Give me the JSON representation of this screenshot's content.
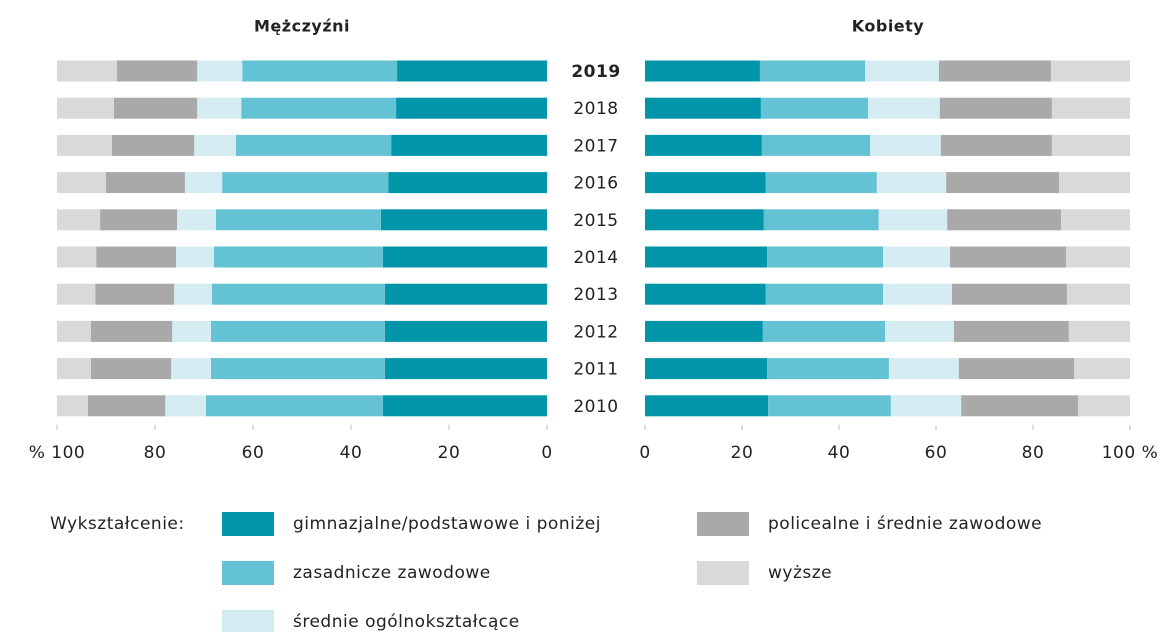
{
  "chart_data": {
    "type": "bar",
    "orientation": "horizontal",
    "stacked": true,
    "categories": [
      "2019",
      "2018",
      "2017",
      "2016",
      "2015",
      "2014",
      "2013",
      "2012",
      "2011",
      "2010"
    ],
    "legend_title": "Wykształcenie:",
    "series": [
      {
        "name": "gimnazjalne/podstawowe i poniżej",
        "color": "#0095a8"
      },
      {
        "name": "zasadnicze zawodowe",
        "color": "#63c2d4"
      },
      {
        "name": "średnie ogólnokształcące",
        "color": "#d4ecf2"
      },
      {
        "name": "policealne i średnie zawodowe",
        "color": "#a9a9a9"
      },
      {
        "name": "wyższe",
        "color": "#d9d9d9"
      }
    ],
    "panels": [
      {
        "title": "Mężczyźni",
        "reversed": true,
        "xlim": [
          0,
          100
        ],
        "xticks": [
          {
            "value": 100,
            "label": "% 100"
          },
          80,
          60,
          40,
          20,
          0
        ],
        "series": [
          {
            "values": [
              30.6,
              30.8,
              31.8,
              32.4,
              33.9,
              33.5,
              33.1,
              33.1,
              33.1,
              33.5
            ]
          },
          {
            "values": [
              31.6,
              31.6,
              31.7,
              33.9,
              33.7,
              34.5,
              35.3,
              35.5,
              35.5,
              36.1
            ]
          },
          {
            "values": [
              9.2,
              9.0,
              8.5,
              7.6,
              7.9,
              7.7,
              7.7,
              7.9,
              8.1,
              8.3
            ]
          },
          {
            "values": [
              16.4,
              17.0,
              16.8,
              16.1,
              15.7,
              16.3,
              16.1,
              16.6,
              16.4,
              15.8
            ]
          },
          {
            "values": [
              12.2,
              11.6,
              11.2,
              10.0,
              8.8,
              8.0,
              7.8,
              6.9,
              6.9,
              6.3
            ]
          }
        ]
      },
      {
        "title": "Kobiety",
        "reversed": false,
        "xlim": [
          0,
          100
        ],
        "xticks": [
          0,
          20,
          40,
          60,
          80,
          {
            "value": 100,
            "label": "100 %"
          }
        ],
        "series": [
          {
            "values": [
              23.7,
              23.9,
              24.1,
              24.9,
              24.5,
              25.2,
              24.9,
              24.3,
              25.2,
              25.4
            ]
          },
          {
            "values": [
              21.7,
              22.1,
              22.3,
              22.9,
              23.7,
              23.9,
              24.2,
              25.2,
              25.1,
              25.3
            ]
          },
          {
            "values": [
              15.2,
              14.8,
              14.6,
              14.3,
              14.1,
              13.8,
              14.2,
              14.2,
              14.4,
              14.5
            ]
          },
          {
            "values": [
              23.1,
              23.1,
              22.9,
              23.3,
              23.5,
              23.9,
              23.7,
              23.7,
              23.8,
              24.1
            ]
          },
          {
            "values": [
              16.3,
              16.1,
              16.1,
              14.6,
              14.2,
              13.2,
              13.0,
              12.6,
              11.5,
              10.7
            ]
          }
        ]
      }
    ]
  }
}
